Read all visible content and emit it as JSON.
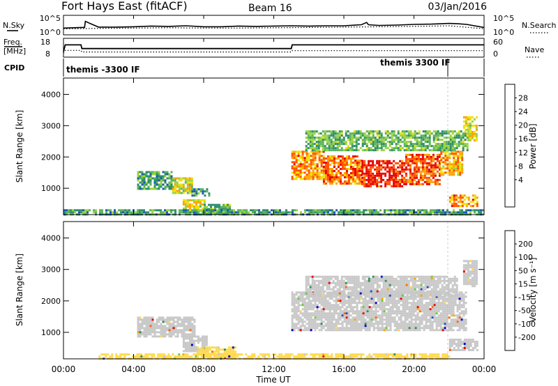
{
  "header": {
    "site": "Fort Hays East (fitACF)",
    "beam": "Beam 16",
    "date": "03/Jan/2016"
  },
  "top_panels": {
    "nsky_label": "N.Sky",
    "nsearch_label": "N.Search",
    "freq_label_1": "Freq.",
    "freq_label_2": "[MHz]",
    "nave_label": "Nave",
    "cpid_label": "CPID",
    "noise_left_ticks": [
      "10^5",
      "10^0"
    ],
    "noise_right_ticks": [
      "10^5",
      "10^0"
    ],
    "freq_ticks": [
      "18",
      "8"
    ],
    "nave_ticks": [
      "60",
      "0"
    ],
    "cpid_segments": [
      {
        "label": "themis -3300 IF",
        "start_hr": 0,
        "end_hr": 21.85
      },
      {
        "label": "themis 3300 IF",
        "start_hr": 21.85,
        "end_hr": 24
      }
    ]
  },
  "x_axis": {
    "title": "Time UT",
    "ticks": [
      "00:00",
      "04:00",
      "08:00",
      "12:00",
      "16:00",
      "20:00",
      "00:00"
    ]
  },
  "panel_power": {
    "ylabel": "Slant Range [km]",
    "cbar_label": "Power [dB]",
    "cbar_ticks": [
      "28",
      "24",
      "20",
      "16",
      "12",
      "8",
      "4"
    ]
  },
  "panel_velocity": {
    "ylabel": "Slant Range [km]",
    "cbar_label": "Velocity [m s⁻¹]",
    "cbar_ticks": [
      "200",
      "100",
      "50",
      "15",
      "-15",
      "-50",
      "-100",
      "-200"
    ]
  },
  "chart_data": [
    {
      "type": "line",
      "name": "noise",
      "x_range_hr": [
        0,
        24
      ],
      "y_log_range": [
        0,
        5
      ],
      "series": [
        {
          "name": "N.Sky",
          "x": [
            0,
            1,
            1.2,
            1.25,
            2,
            3,
            4,
            5,
            6,
            7,
            8,
            9,
            10,
            11,
            12,
            13,
            14,
            15,
            16,
            17,
            17.3,
            17.4,
            18,
            19,
            20,
            21,
            22,
            22.5,
            23,
            24
          ],
          "y": [
            1.6,
            1.8,
            1.8,
            3.6,
            1.9,
            1.9,
            2.0,
            2.2,
            2.1,
            2.3,
            2.0,
            2.0,
            2.2,
            2.1,
            2.2,
            2.3,
            2.2,
            2.3,
            2.3,
            2.6,
            3.3,
            2.6,
            2.4,
            2.5,
            2.7,
            2.8,
            3.0,
            2.9,
            2.7,
            1.8
          ]
        },
        {
          "name": "N.Search",
          "x": [
            0,
            2,
            4,
            6,
            8,
            10,
            12,
            14,
            16,
            18,
            20,
            22,
            24
          ],
          "y": [
            1.4,
            1.5,
            1.6,
            1.7,
            1.6,
            1.6,
            1.7,
            1.8,
            1.9,
            2.0,
            2.1,
            2.3,
            1.4
          ]
        }
      ]
    },
    {
      "type": "line",
      "name": "frequency-nave",
      "x_range_hr": [
        0,
        24
      ],
      "y_range_freq": [
        8,
        18
      ],
      "y_range_nave": [
        0,
        60
      ],
      "series": [
        {
          "name": "Freq.",
          "x": [
            0,
            0.1,
            1.0,
            1.05,
            13.0,
            13.05,
            24
          ],
          "y": [
            10.5,
            14.8,
            14.8,
            12.5,
            12.5,
            14.8,
            14.8
          ]
        },
        {
          "name": "Nave",
          "x": [
            0,
            0.1,
            1.0,
            1.05,
            13.0,
            13.05,
            24
          ],
          "y": [
            10,
            20,
            20,
            14,
            14,
            19,
            19
          ]
        }
      ]
    },
    {
      "type": "heatmap",
      "name": "power",
      "x_range_hr": [
        0,
        24
      ],
      "ylim_km": [
        180,
        4500
      ],
      "zlim_db": [
        0,
        30
      ],
      "colorscale": [
        "#0000dd",
        "#1a57b8",
        "#2e8e6b",
        "#5bb35b",
        "#9ad33f",
        "#f0e000",
        "#ffa000",
        "#ff5000",
        "#e80000"
      ],
      "regions": [
        {
          "x": [
            4.2,
            6.2
          ],
          "y": [
            950,
            1550
          ],
          "value": 10
        },
        {
          "x": [
            6.2,
            7.3
          ],
          "y": [
            850,
            1350
          ],
          "value": 17
        },
        {
          "x": [
            7.3,
            8.3
          ],
          "y": [
            750,
            1000
          ],
          "value": 10
        },
        {
          "x": [
            6.8,
            8.0
          ],
          "y": [
            300,
            650
          ],
          "value": 18
        },
        {
          "x": [
            8.0,
            9.5
          ],
          "y": [
            200,
            500
          ],
          "value": 12
        },
        {
          "x": [
            0,
            24
          ],
          "y": [
            180,
            330
          ],
          "value": 10
        },
        {
          "x": [
            13.0,
            14.8
          ],
          "y": [
            1300,
            2200
          ],
          "value": 22
        },
        {
          "x": [
            14.8,
            17.0
          ],
          "y": [
            1150,
            2050
          ],
          "value": 24
        },
        {
          "x": [
            17.0,
            19.5
          ],
          "y": [
            1050,
            1900
          ],
          "value": 27
        },
        {
          "x": [
            19.5,
            21.5
          ],
          "y": [
            1150,
            2100
          ],
          "value": 25
        },
        {
          "x": [
            21.5,
            22.8
          ],
          "y": [
            1400,
            2200
          ],
          "value": 21
        },
        {
          "x": [
            22.8,
            23.6
          ],
          "y": [
            2500,
            3300
          ],
          "value": 18
        },
        {
          "x": [
            22.0,
            23.6
          ],
          "y": [
            450,
            800
          ],
          "value": 22
        },
        {
          "x": [
            13.8,
            23.0
          ],
          "y": [
            2200,
            2850
          ],
          "value": 12
        }
      ]
    },
    {
      "type": "heatmap",
      "name": "velocity",
      "x_range_hr": [
        0,
        24
      ],
      "ylim_km": [
        180,
        4500
      ],
      "zlim_ms": [
        -250,
        250
      ],
      "colorscale": [
        "#e60000",
        "#ff6600",
        "#ffa500",
        "#ffd94d",
        "#c8c8c8",
        "#66cc33",
        "#2e8b57",
        "#2a4bb8",
        "#0000cc"
      ],
      "regions": [
        {
          "x": [
            4.2,
            7.5
          ],
          "y": [
            900,
            1500
          ],
          "value": 0
        },
        {
          "x": [
            6.8,
            8.2
          ],
          "y": [
            400,
            900
          ],
          "value": 0
        },
        {
          "x": [
            7.6,
            9.8
          ],
          "y": [
            200,
            550
          ],
          "value": -60
        },
        {
          "x": [
            13.0,
            23.0
          ],
          "y": [
            1100,
            2300
          ],
          "value": 0
        },
        {
          "x": [
            13.8,
            22.5
          ],
          "y": [
            2200,
            2800
          ],
          "value": 0
        },
        {
          "x": [
            22.0,
            23.6
          ],
          "y": [
            450,
            800
          ],
          "value": 0
        },
        {
          "x": [
            22.8,
            23.6
          ],
          "y": [
            2500,
            3300
          ],
          "value": 0
        },
        {
          "x": [
            2.0,
            22.0
          ],
          "y": [
            180,
            330
          ],
          "value": -40
        }
      ]
    }
  ]
}
